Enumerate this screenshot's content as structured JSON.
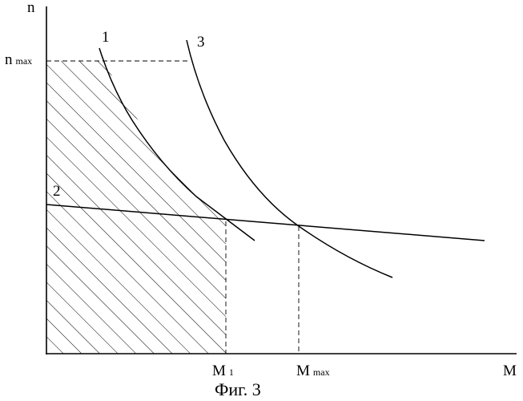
{
  "axes": {
    "y_label": "n",
    "x_label": "M",
    "n_max_label": "n",
    "n_max_sub": "max",
    "m1_label": "M",
    "m1_sub": "1",
    "m_max_label": "M",
    "m_max_sub": "max"
  },
  "curves": {
    "curve_1_label": "1",
    "curve_2_label": "2",
    "curve_3_label": "3"
  },
  "caption": "Фиг. 3"
}
